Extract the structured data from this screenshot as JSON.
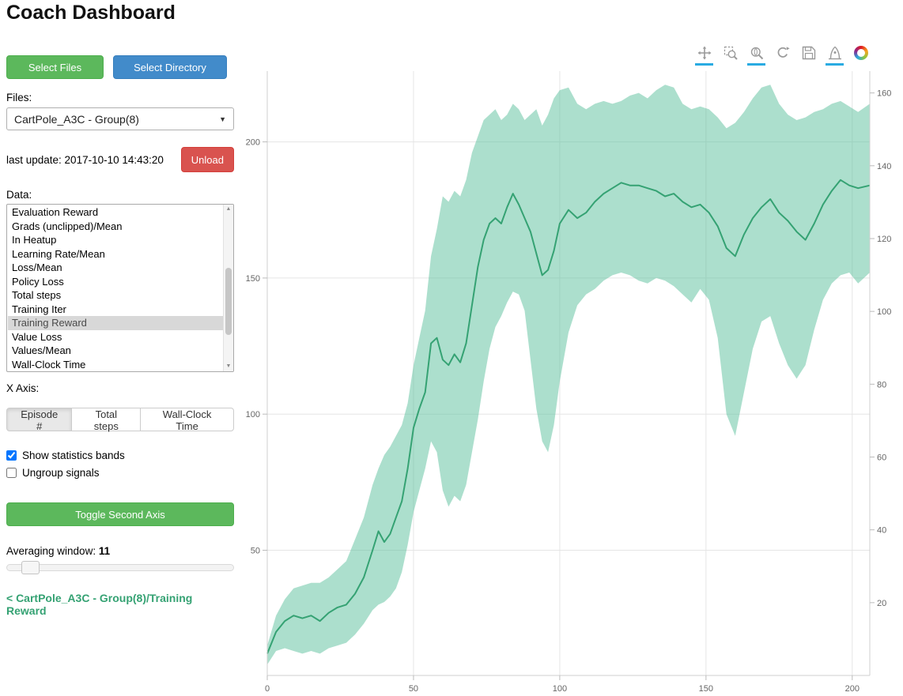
{
  "header": {
    "title": "Coach Dashboard"
  },
  "sidebar": {
    "buttons": {
      "select_files": "Select Files",
      "select_directory": "Select Directory",
      "unload": "Unload",
      "toggle_second_axis": "Toggle Second Axis"
    },
    "files_label": "Files:",
    "files_value": "CartPole_A3C - Group(8)",
    "last_update": "last update: 2017-10-10 14:43:20",
    "data_label": "Data:",
    "data_items": [
      "Evaluation Reward",
      "Grads (unclipped)/Mean",
      "In Heatup",
      "Learning Rate/Mean",
      "Loss/Mean",
      "Policy Loss",
      "Total steps",
      "Training Iter",
      "Training Reward",
      "Value Loss",
      "Values/Mean",
      "Wall-Clock Time"
    ],
    "data_selected": "Training Reward",
    "x_axis_label": "X Axis:",
    "x_axis_options": [
      "Episode #",
      "Total steps",
      "Wall-Clock Time"
    ],
    "x_axis_selected": "Episode #",
    "show_bands_label": "Show statistics bands",
    "show_bands_checked": true,
    "ungroup_label": "Ungroup signals",
    "ungroup_checked": false,
    "averaging_label": "Averaging window:",
    "averaging_value": "11",
    "breadcrumb": "< CartPole_A3C - Group(8)/Training Reward"
  },
  "toolbar": {
    "tools": [
      {
        "name": "pan-tool-icon",
        "icon": "pan",
        "active": true
      },
      {
        "name": "box-zoom-icon",
        "icon": "box-zoom",
        "active": false
      },
      {
        "name": "wheel-zoom-icon",
        "icon": "wheel-zoom",
        "active": true
      },
      {
        "name": "reset-icon",
        "icon": "reset",
        "active": false
      },
      {
        "name": "save-icon",
        "icon": "save",
        "active": false
      },
      {
        "name": "hover-tool-icon",
        "icon": "hover",
        "active": true
      },
      {
        "name": "bokeh-logo",
        "icon": "logo",
        "active": false
      }
    ],
    "active_color": "#29abe2"
  },
  "chart_data": {
    "type": "line",
    "series_name": "Training Reward",
    "x_axis": "Episode #",
    "x_ticks": [
      0,
      50,
      100,
      150,
      200
    ],
    "y_left_ticks": [
      50,
      100,
      150,
      200
    ],
    "y_right_ticks": [
      20,
      40,
      60,
      80,
      100,
      120,
      140,
      160
    ],
    "x_range": [
      0,
      206
    ],
    "y_left_range": [
      4,
      226
    ],
    "y_right_range": [
      0,
      166
    ],
    "grid": true,
    "line_color": "#35a273",
    "band_color": "#5abf9b",
    "band_opacity": 0.5,
    "x": [
      0,
      3,
      6,
      9,
      12,
      15,
      18,
      21,
      24,
      27,
      30,
      33,
      36,
      38,
      40,
      42,
      44,
      46,
      48,
      50,
      52,
      54,
      56,
      58,
      60,
      62,
      64,
      66,
      68,
      70,
      72,
      74,
      76,
      78,
      80,
      82,
      84,
      86,
      88,
      90,
      92,
      94,
      96,
      98,
      100,
      103,
      106,
      109,
      112,
      115,
      118,
      121,
      124,
      127,
      130,
      133,
      136,
      139,
      142,
      145,
      148,
      151,
      154,
      157,
      160,
      163,
      166,
      169,
      172,
      175,
      178,
      181,
      184,
      187,
      190,
      193,
      196,
      199,
      202,
      206
    ],
    "mean": [
      12,
      20,
      24,
      26,
      25,
      26,
      24,
      27,
      29,
      30,
      34,
      40,
      50,
      57,
      53,
      56,
      62,
      68,
      80,
      95,
      102,
      108,
      126,
      128,
      120,
      118,
      122,
      119,
      126,
      140,
      154,
      164,
      170,
      172,
      170,
      176,
      181,
      177,
      172,
      167,
      159,
      151,
      153,
      160,
      170,
      175,
      172,
      174,
      178,
      181,
      183,
      185,
      184,
      184,
      183,
      182,
      180,
      181,
      178,
      176,
      177,
      174,
      169,
      161,
      158,
      166,
      172,
      176,
      179,
      174,
      171,
      167,
      164,
      170,
      177,
      182,
      186,
      184,
      183,
      184
    ],
    "upper": [
      15,
      26,
      32,
      36,
      37,
      38,
      38,
      40,
      43,
      46,
      54,
      62,
      74,
      80,
      85,
      88,
      92,
      96,
      104,
      118,
      128,
      138,
      158,
      168,
      180,
      178,
      182,
      180,
      186,
      196,
      202,
      208,
      210,
      212,
      208,
      210,
      214,
      212,
      208,
      210,
      212,
      206,
      210,
      216,
      219,
      220,
      214,
      212,
      214,
      215,
      214,
      215,
      217,
      218,
      216,
      219,
      221,
      220,
      214,
      212,
      213,
      212,
      209,
      205,
      207,
      211,
      216,
      220,
      221,
      214,
      210,
      208,
      209,
      211,
      212,
      214,
      215,
      213,
      211,
      214
    ],
    "lower": [
      8,
      13,
      14,
      13,
      12,
      13,
      12,
      14,
      15,
      16,
      19,
      23,
      28,
      30,
      31,
      33,
      36,
      42,
      52,
      64,
      72,
      80,
      90,
      86,
      72,
      66,
      70,
      68,
      74,
      86,
      98,
      112,
      124,
      132,
      136,
      141,
      145,
      144,
      138,
      120,
      102,
      90,
      86,
      96,
      112,
      130,
      140,
      144,
      146,
      149,
      151,
      152,
      151,
      149,
      148,
      150,
      149,
      147,
      144,
      141,
      146,
      142,
      128,
      100,
      92,
      108,
      124,
      134,
      136,
      126,
      118,
      113,
      118,
      131,
      142,
      148,
      151,
      152,
      148,
      152
    ]
  }
}
